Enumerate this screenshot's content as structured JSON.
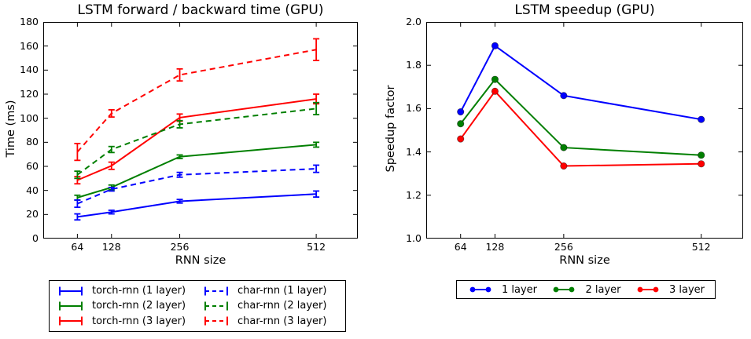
{
  "figure": {
    "background": "#ffffff",
    "frame_color": "#000000"
  },
  "chart_data": [
    {
      "type": "line",
      "title": "LSTM forward / backward time (GPU)",
      "xlabel": "RNN size",
      "ylabel": "Time (ms)",
      "x": [
        64,
        128,
        256,
        512
      ],
      "xlim": [
        0,
        590
      ],
      "ylim": [
        0,
        180
      ],
      "xticks": [
        64,
        128,
        256,
        512
      ],
      "xticklabels": [
        "64",
        "128",
        "256",
        "512"
      ],
      "yticks": [
        0,
        20,
        40,
        60,
        80,
        100,
        120,
        140,
        160,
        180
      ],
      "yticklabels": [
        "0",
        "20",
        "40",
        "60",
        "80",
        "100",
        "120",
        "140",
        "160",
        "180"
      ],
      "grid": false,
      "legend_position": "below-two-columns",
      "series": [
        {
          "name": "torch-rnn (1 layer)",
          "color": "#0000ff",
          "dash": "solid",
          "marker": "none",
          "values": [
            18,
            22,
            31,
            37
          ],
          "errors": [
            2.5,
            1.5,
            1.5,
            2.5
          ]
        },
        {
          "name": "torch-rnn (2 layer)",
          "color": "#007f00",
          "dash": "solid",
          "marker": "none",
          "values": [
            34,
            42.5,
            68,
            78
          ],
          "errors": [
            2,
            2,
            1.5,
            2
          ]
        },
        {
          "name": "torch-rnn (3 layer)",
          "color": "#ff0000",
          "dash": "solid",
          "marker": "none",
          "values": [
            48.5,
            60.5,
            100.5,
            116
          ],
          "errors": [
            3,
            3,
            3,
            4
          ]
        },
        {
          "name": "char-rnn (1 layer)",
          "color": "#0000ff",
          "dash": "dashed",
          "marker": "none",
          "values": [
            29,
            41,
            53,
            58
          ],
          "errors": [
            3,
            1.5,
            2,
            3
          ]
        },
        {
          "name": "char-rnn (2 layer)",
          "color": "#007f00",
          "dash": "dashed",
          "marker": "none",
          "values": [
            53,
            74,
            95,
            108
          ],
          "errors": [
            3,
            2.5,
            3,
            5
          ]
        },
        {
          "name": "char-rnn (3 layer)",
          "color": "#ff0000",
          "dash": "dashed",
          "marker": "none",
          "values": [
            72,
            104,
            136,
            157
          ],
          "errors": [
            7,
            3,
            5,
            9
          ]
        }
      ]
    },
    {
      "type": "line",
      "title": "LSTM speedup (GPU)",
      "xlabel": "RNN size",
      "ylabel": "Speedup factor",
      "x": [
        64,
        128,
        256,
        512
      ],
      "xlim": [
        0,
        590
      ],
      "ylim": [
        1.0,
        2.0
      ],
      "xticks": [
        64,
        128,
        256,
        512
      ],
      "xticklabels": [
        "64",
        "128",
        "256",
        "512"
      ],
      "yticks": [
        1.0,
        1.2,
        1.4,
        1.6,
        1.8,
        2.0
      ],
      "yticklabels": [
        "1.0",
        "1.2",
        "1.4",
        "1.6",
        "1.8",
        "2.0"
      ],
      "grid": false,
      "legend_position": "below-one-row",
      "series": [
        {
          "name": "1 layer",
          "color": "#0000ff",
          "dash": "solid",
          "marker": "circle",
          "values": [
            1.585,
            1.89,
            1.66,
            1.55
          ]
        },
        {
          "name": "2 layer",
          "color": "#007f00",
          "dash": "solid",
          "marker": "circle",
          "values": [
            1.53,
            1.735,
            1.42,
            1.385
          ]
        },
        {
          "name": "3 layer",
          "color": "#ff0000",
          "dash": "solid",
          "marker": "circle",
          "values": [
            1.46,
            1.68,
            1.335,
            1.345
          ]
        }
      ]
    }
  ]
}
